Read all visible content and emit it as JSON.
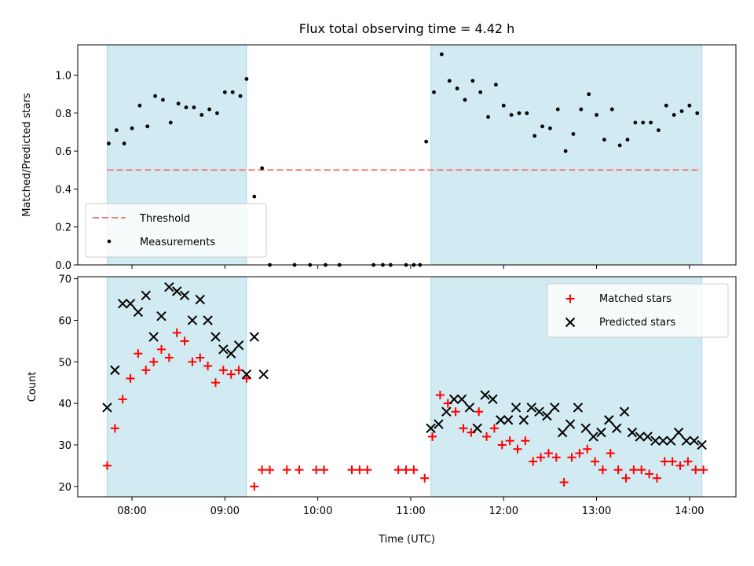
{
  "figure": {
    "title": "Flux total observing time = 4.42 h",
    "xlabel": "Time (UTC)",
    "x_ticks": [
      "08:00",
      "09:00",
      "10:00",
      "11:00",
      "12:00",
      "13:00",
      "14:00"
    ]
  },
  "colors": {
    "shade": "#add8e6",
    "threshold": "#f08080",
    "matched": "#ff0000",
    "predicted": "#000000",
    "points": "#000000"
  },
  "chart_data": [
    {
      "type": "scatter",
      "ylabel": "Matched/Predicted stars",
      "xlim": [
        "07:25",
        "14:30"
      ],
      "ylim": [
        0,
        1.16
      ],
      "y_ticks": [
        "0.0",
        "0.2",
        "0.4",
        "0.6",
        "0.8",
        "1.0"
      ],
      "shaded_regions": [
        [
          "07:44",
          "09:14"
        ],
        [
          "11:13",
          "14:08"
        ]
      ],
      "threshold": {
        "value": 0.5,
        "x_range": [
          "07:44",
          "14:06"
        ],
        "label": "Threshold"
      },
      "legend": {
        "position": "lower-left",
        "entries": [
          "Threshold",
          "Measurements"
        ]
      },
      "series": [
        {
          "name": "Measurements",
          "x": [
            "07:45",
            "07:50",
            "07:55",
            "08:00",
            "08:05",
            "08:10",
            "08:15",
            "08:20",
            "08:25",
            "08:30",
            "08:35",
            "08:40",
            "08:45",
            "08:50",
            "08:55",
            "09:00",
            "09:05",
            "09:10",
            "09:14",
            "09:19",
            "09:24",
            "09:29",
            "09:45",
            "09:55",
            "10:05",
            "10:14",
            "10:36",
            "10:42",
            "10:47",
            "10:57",
            "11:02",
            "11:06",
            "11:10",
            "11:15",
            "11:20",
            "11:25",
            "11:30",
            "11:35",
            "11:40",
            "11:45",
            "11:50",
            "11:55",
            "12:00",
            "12:05",
            "12:10",
            "12:15",
            "12:20",
            "12:25",
            "12:30",
            "12:35",
            "12:40",
            "12:45",
            "12:50",
            "12:55",
            "13:00",
            "13:05",
            "13:10",
            "13:15",
            "13:20",
            "13:25",
            "13:30",
            "13:35",
            "13:40",
            "13:45",
            "13:50",
            "13:55",
            "14:00",
            "14:05"
          ],
          "y": [
            0.64,
            0.71,
            0.64,
            0.72,
            0.84,
            0.73,
            0.89,
            0.87,
            0.75,
            0.85,
            0.83,
            0.83,
            0.79,
            0.82,
            0.8,
            0.91,
            0.91,
            0.89,
            0.98,
            0.36,
            0.51,
            0.0,
            0.0,
            0.0,
            0.0,
            0.0,
            0.0,
            0.0,
            0.0,
            0.0,
            0.0,
            0.0,
            0.65,
            0.91,
            1.11,
            0.97,
            0.93,
            0.87,
            0.97,
            0.91,
            0.78,
            0.95,
            0.84,
            0.79,
            0.8,
            0.8,
            0.68,
            0.73,
            0.72,
            0.82,
            0.6,
            0.69,
            0.82,
            0.9,
            0.79,
            0.66,
            0.82,
            0.63,
            0.66,
            0.75,
            0.75,
            0.75,
            0.71,
            0.84,
            0.79,
            0.81,
            0.84,
            0.8
          ]
        }
      ]
    },
    {
      "type": "scatter",
      "ylabel": "Count",
      "xlim": [
        "07:25",
        "14:30"
      ],
      "ylim": [
        17.5,
        70.5
      ],
      "y_ticks": [
        "20",
        "30",
        "40",
        "50",
        "60",
        "70"
      ],
      "shaded_regions": [
        [
          "07:44",
          "09:14"
        ],
        [
          "11:13",
          "14:08"
        ]
      ],
      "legend": {
        "position": "upper-right",
        "entries": [
          "Matched stars",
          "Predicted stars"
        ]
      },
      "series": [
        {
          "name": "Matched stars",
          "marker": "+",
          "x": [
            "07:44",
            "07:49",
            "07:54",
            "07:59",
            "08:04",
            "08:09",
            "08:14",
            "08:19",
            "08:24",
            "08:29",
            "08:34",
            "08:39",
            "08:44",
            "08:49",
            "08:54",
            "08:59",
            "09:04",
            "09:09",
            "09:14",
            "09:19",
            "09:24",
            "09:29",
            "09:40",
            "09:48",
            "09:59",
            "10:04",
            "10:22",
            "10:27",
            "10:32",
            "10:52",
            "10:57",
            "11:02",
            "11:09",
            "11:14",
            "11:19",
            "11:24",
            "11:29",
            "11:34",
            "11:39",
            "11:44",
            "11:49",
            "11:54",
            "11:59",
            "12:04",
            "12:09",
            "12:14",
            "12:19",
            "12:24",
            "12:29",
            "12:34",
            "12:39",
            "12:44",
            "12:49",
            "12:54",
            "12:59",
            "13:04",
            "13:09",
            "13:14",
            "13:19",
            "13:24",
            "13:29",
            "13:34",
            "13:39",
            "13:44",
            "13:49",
            "13:54",
            "13:59",
            "14:04",
            "14:09"
          ],
          "y": [
            25,
            34,
            41,
            46,
            52,
            48,
            50,
            53,
            51,
            57,
            55,
            50,
            51,
            49,
            45,
            48,
            47,
            48,
            46,
            20,
            24,
            24,
            24,
            24,
            24,
            24,
            24,
            24,
            24,
            24,
            24,
            24,
            22,
            32,
            42,
            40,
            38,
            34,
            33,
            38,
            32,
            34,
            30,
            31,
            29,
            31,
            26,
            27,
            28,
            27,
            21,
            27,
            28,
            29,
            26,
            24,
            28,
            24,
            22,
            24,
            24,
            23,
            22,
            26,
            26,
            25,
            26,
            24,
            24
          ]
        },
        {
          "name": "Predicted stars",
          "marker": "x",
          "x": [
            "07:44",
            "07:49",
            "07:54",
            "07:59",
            "08:04",
            "08:09",
            "08:14",
            "08:19",
            "08:24",
            "08:29",
            "08:34",
            "08:39",
            "08:44",
            "08:49",
            "08:54",
            "08:59",
            "09:04",
            "09:09",
            "09:14",
            "09:19",
            "09:25",
            "11:13",
            "11:18",
            "11:23",
            "11:28",
            "11:33",
            "11:38",
            "11:43",
            "11:48",
            "11:53",
            "11:58",
            "12:03",
            "12:08",
            "12:13",
            "12:18",
            "12:23",
            "12:28",
            "12:33",
            "12:38",
            "12:43",
            "12:48",
            "12:53",
            "12:58",
            "13:03",
            "13:08",
            "13:13",
            "13:18",
            "13:23",
            "13:28",
            "13:33",
            "13:38",
            "13:43",
            "13:48",
            "13:53",
            "13:58",
            "14:03",
            "14:08"
          ],
          "y": [
            39,
            48,
            64,
            64,
            62,
            66,
            56,
            61,
            68,
            67,
            66,
            60,
            65,
            60,
            56,
            53,
            52,
            54,
            47,
            56,
            47,
            34,
            35,
            38,
            41,
            41,
            39,
            34,
            42,
            41,
            36,
            36,
            39,
            36,
            39,
            38,
            37,
            39,
            33,
            35,
            39,
            34,
            32,
            33,
            36,
            34,
            38,
            33,
            32,
            32,
            31,
            31,
            31,
            33,
            31,
            31,
            30
          ]
        }
      ]
    }
  ]
}
